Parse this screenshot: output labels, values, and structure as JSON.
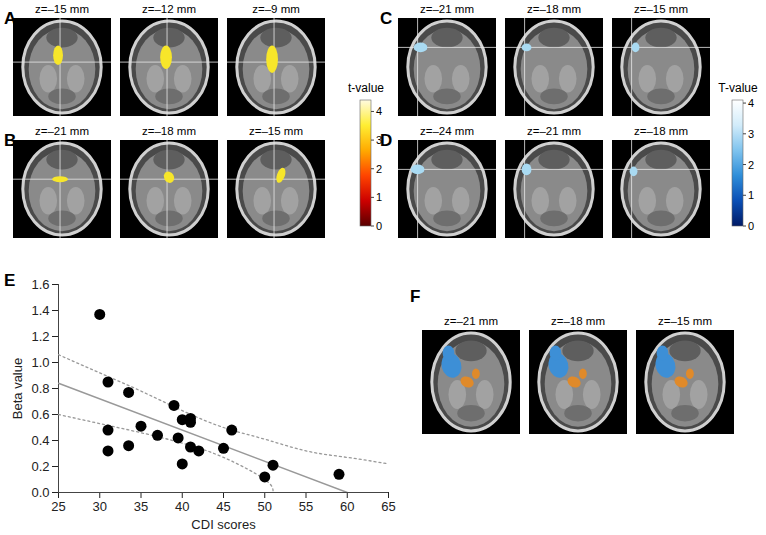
{
  "chart_data": {
    "type": "scatter",
    "panel": "E",
    "x_label": "CDI scores",
    "y_label": "Beta value",
    "x": [
      30,
      31,
      31,
      31,
      33.5,
      33.5,
      35,
      37,
      39,
      39.5,
      40,
      40,
      41,
      41,
      41,
      42,
      45,
      46,
      50,
      51,
      59
    ],
    "values": [
      1.37,
      0.85,
      0.48,
      0.32,
      0.77,
      0.36,
      0.51,
      0.44,
      0.67,
      0.42,
      0.22,
      0.56,
      0.57,
      0.54,
      0.35,
      0.32,
      0.34,
      0.48,
      0.12,
      0.21,
      0.14
    ],
    "color": "#000000",
    "marker": "circle",
    "fit_line": {
      "x": [
        25,
        60
      ],
      "values": [
        0.84,
        0.0
      ],
      "color": "#999999",
      "line_style": "solid"
    },
    "confidence_upper": {
      "x": [
        25,
        30,
        35,
        40,
        45,
        50,
        55,
        60,
        65
      ],
      "values": [
        1.06,
        0.92,
        0.78,
        0.63,
        0.5,
        0.41,
        0.32,
        0.27,
        0.22
      ],
      "color": "#999999",
      "line_style": "dotted"
    },
    "confidence_lower": {
      "x": [
        25,
        30,
        35,
        40,
        45,
        50,
        51
      ],
      "values": [
        0.6,
        0.53,
        0.46,
        0.38,
        0.27,
        0.1,
        0.0
      ],
      "color": "#999999",
      "line_style": "dotted"
    },
    "xlim": [
      25,
      65
    ],
    "xticks": [
      25,
      30,
      35,
      40,
      45,
      50,
      55,
      60,
      65
    ],
    "ylim": [
      0,
      1.6
    ],
    "yticks": [
      {
        "value": 0,
        "label": "0.0"
      },
      0.2,
      0.4,
      0.6,
      0.8,
      {
        "value": 1,
        "label": "1.0"
      },
      1.2,
      1.4,
      1.6
    ],
    "grid": false
  },
  "panels": [
    {
      "label": "A",
      "slices": [
        "z=–15 mm",
        "z=–12 mm",
        "z=–9 mm"
      ],
      "colors": [
        "#f7e62a"
      ]
    },
    {
      "label": "B",
      "slices": [
        "z=–21 mm",
        "z=–18 mm",
        "z=–15 mm"
      ],
      "colors": [
        "#f7e62a"
      ]
    },
    {
      "label": "C",
      "slices": [
        "z=–21 mm",
        "z=–18 mm",
        "z=–15 mm"
      ],
      "colors": [
        "#a9daf2"
      ]
    },
    {
      "label": "D",
      "slices": [
        "z=–24 mm",
        "z=–21 mm",
        "z=–18 mm"
      ],
      "colors": [
        "#a9daf2"
      ]
    },
    {
      "label": "F",
      "slices": [
        "z=–21 mm",
        "z=–18 mm",
        "z=–15 mm"
      ],
      "colors": [
        "#3d8fd6",
        "#e08a2a"
      ]
    }
  ],
  "colorbars": [
    {
      "label": "t-value",
      "range": [
        0,
        4.4
      ],
      "ticks": [
        0,
        1,
        2,
        3,
        4
      ],
      "colors": [
        "#5a0000",
        "#cc0000",
        "#ff4400",
        "#ffaa00",
        "#ffee33",
        "#fffbe0"
      ]
    },
    {
      "label": "T-value",
      "range": [
        0,
        4.1
      ],
      "ticks": [
        0,
        1,
        2,
        3,
        4
      ],
      "colors": [
        "#001a66",
        "#0a4fb5",
        "#2f8ed9",
        "#7fc3ee",
        "#d2ecfa",
        "#ffffff"
      ]
    }
  ]
}
